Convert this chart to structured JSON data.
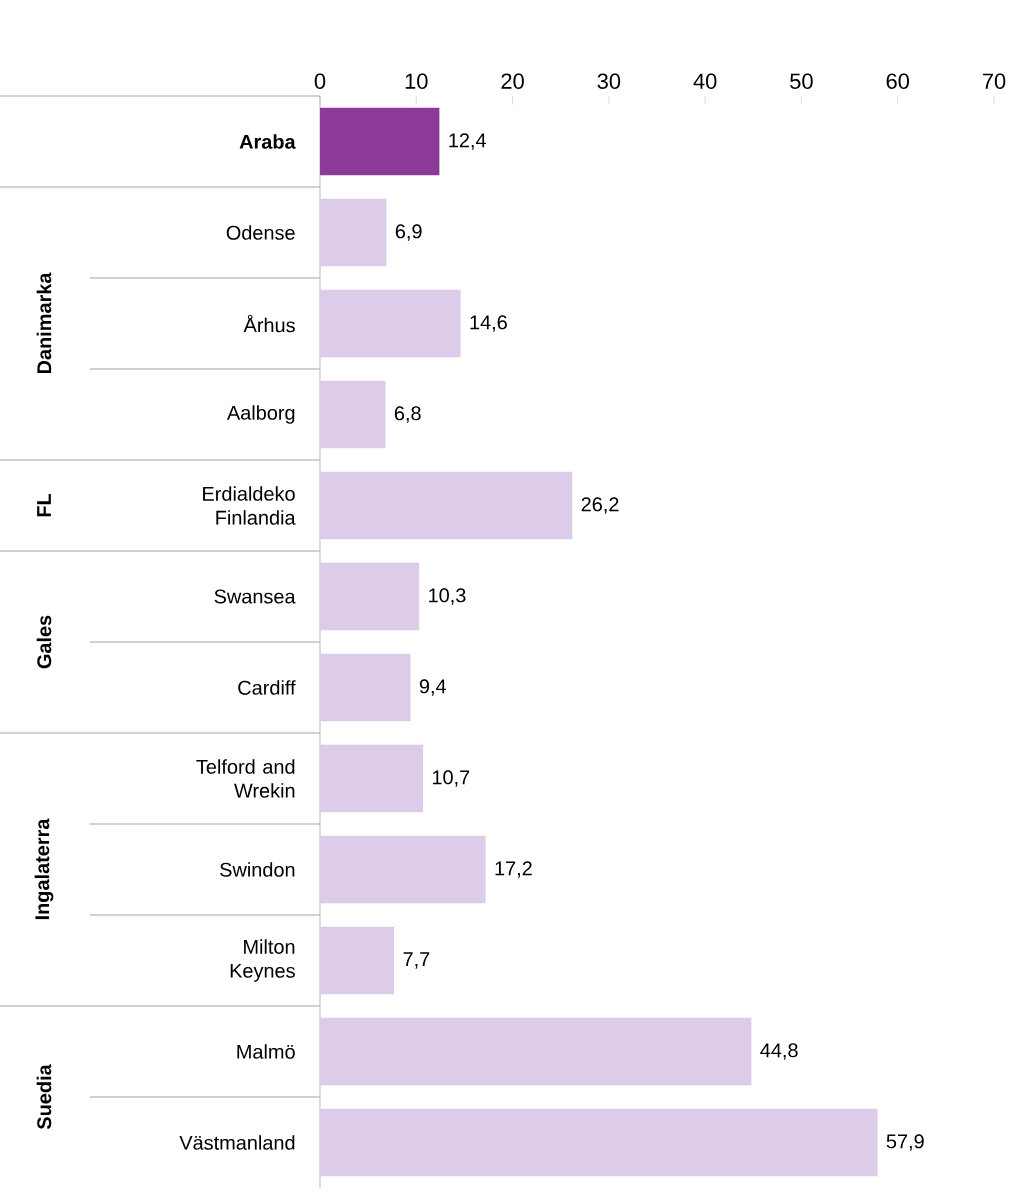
{
  "chart_data": {
    "type": "bar",
    "orientation": "horizontal",
    "categories": [
      "Araba",
      "Odense",
      "Århus",
      "Aalborg",
      "Erdialdeko Finlandia",
      "Swansea",
      "Cardiff",
      "Telford and Wrekin",
      "Swindon",
      "Milton Keynes",
      "Malmö",
      "Västmanland"
    ],
    "values": [
      12.4,
      6.9,
      14.6,
      6.8,
      26.2,
      10.3,
      9.4,
      10.7,
      17.2,
      7.7,
      44.8,
      57.9
    ],
    "value_labels": [
      "12,4",
      "6,9",
      "14,6",
      "6,8",
      "26,2",
      "10,3",
      "9,4",
      "10,7",
      "17,2",
      "7,7",
      "44,8",
      "57,9"
    ],
    "colors": [
      "#8b3a98",
      "#dccbe9",
      "#dccbe9",
      "#dccbe9",
      "#dccbe9",
      "#dccbe9",
      "#dccbe9",
      "#dccbe9",
      "#dccbe9",
      "#dccbe9",
      "#dccbe9",
      "#dccbe9"
    ],
    "xlim": [
      0,
      70
    ],
    "xticks": [
      0,
      10,
      20,
      30,
      40,
      50,
      60,
      70
    ],
    "annotations": [
      "Danimarka",
      "FL",
      "Gales",
      "Ingalaterra",
      "Suedia"
    ]
  }
}
